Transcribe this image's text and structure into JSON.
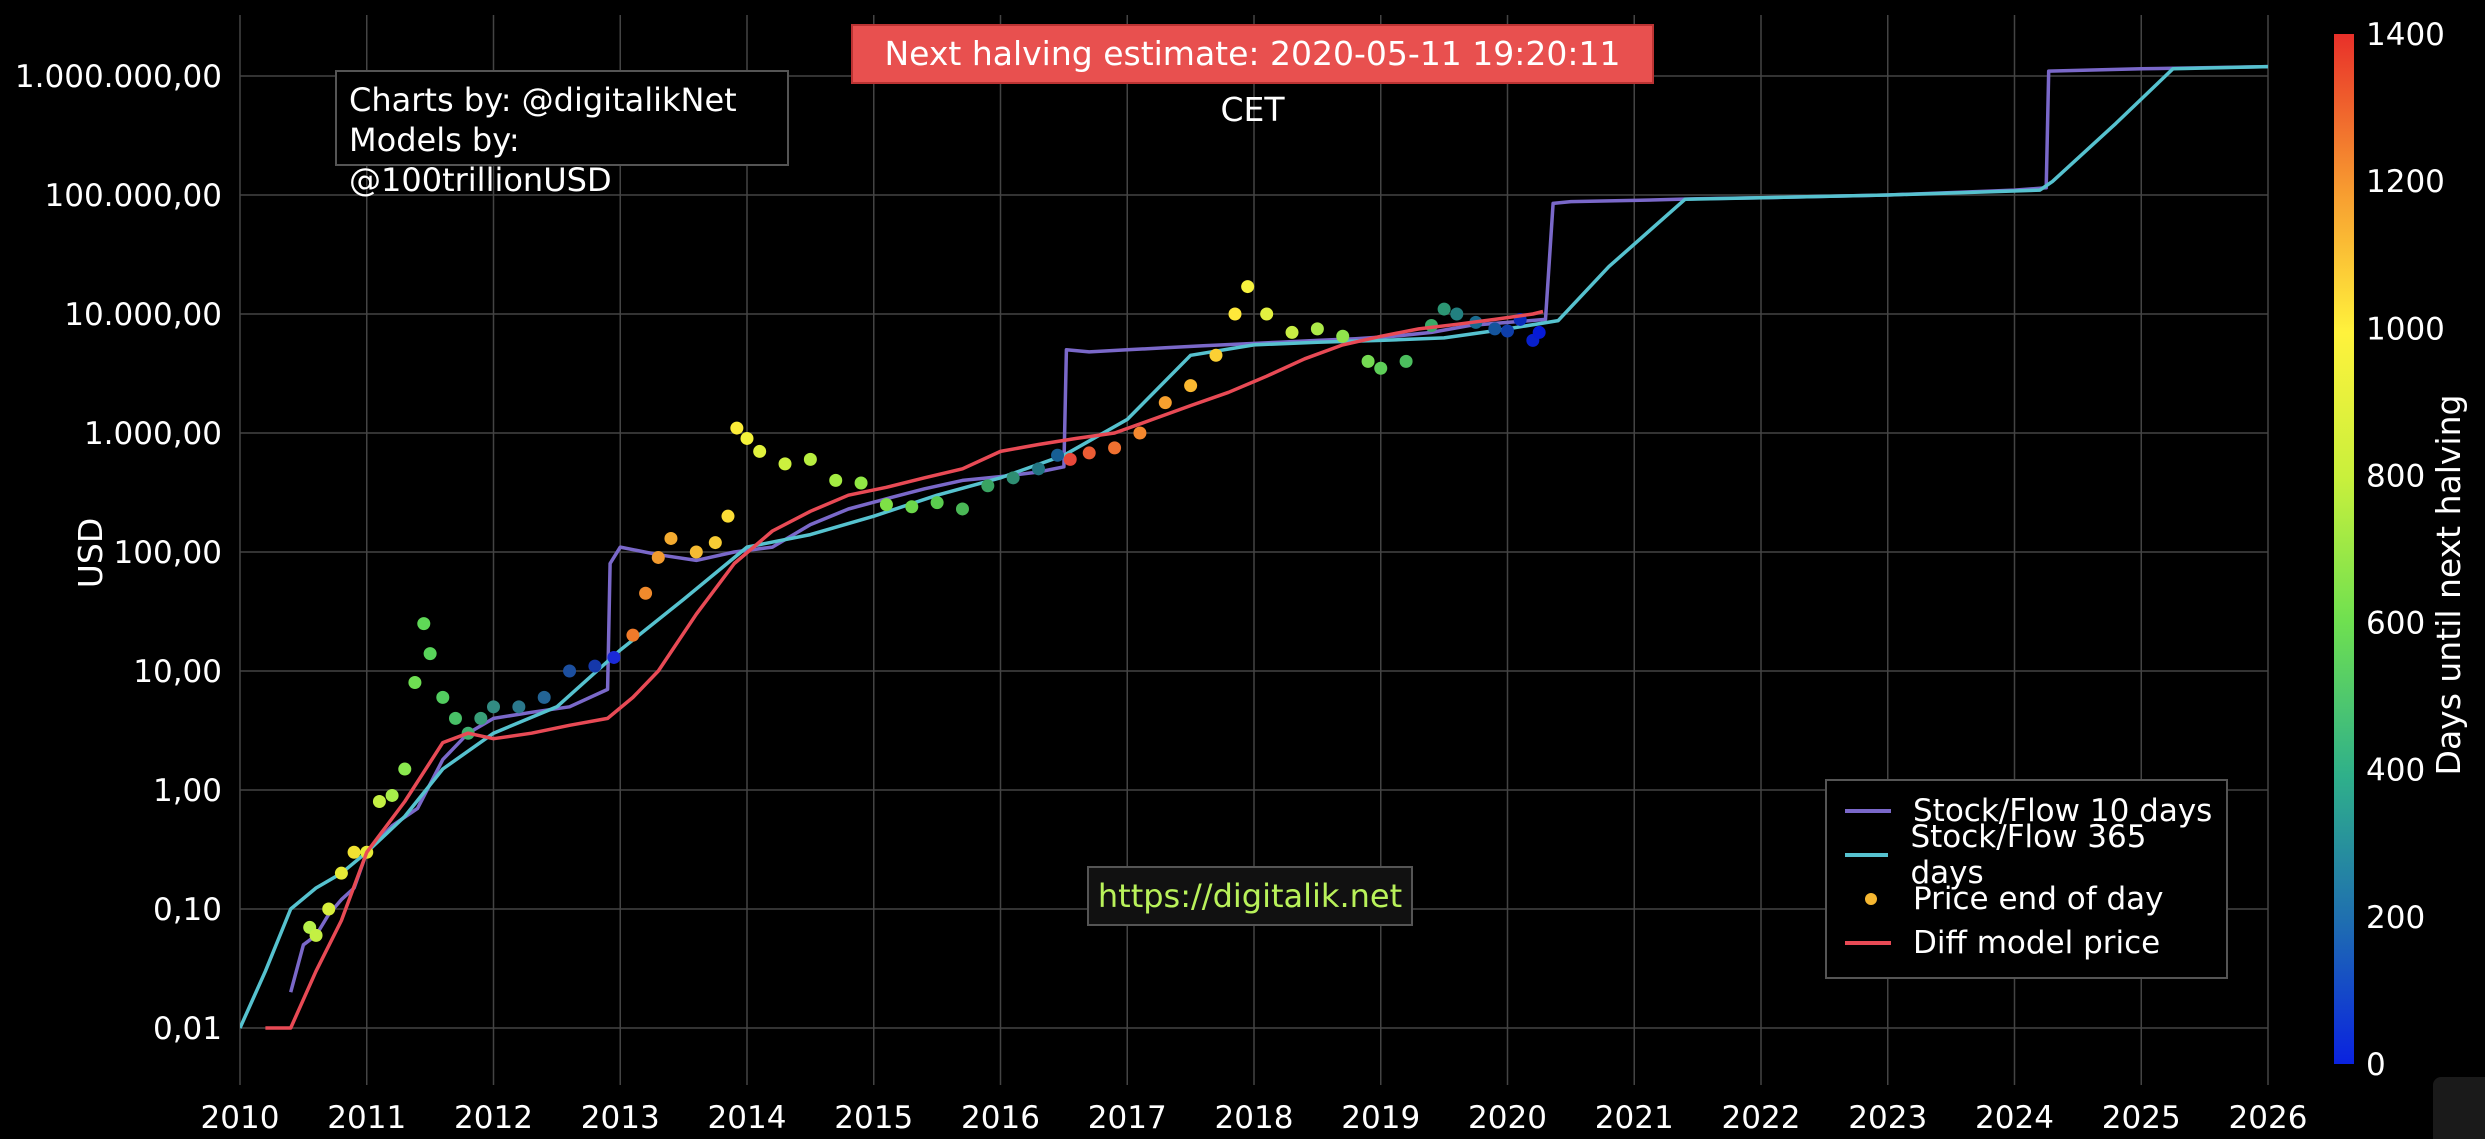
{
  "header": {
    "credit_line1": "Charts by: @digitalikNet",
    "credit_line2": "Models by: @100trillionUSD",
    "halving_text": "Next halving estimate: 2020-05-11 19:20:11 CET",
    "site_url": "https://digitalik.net"
  },
  "colors": {
    "sf10": "#7a68c9",
    "sf365": "#56c2cf",
    "price_marker": "#f5b731",
    "diff_model": "#e84a55",
    "halving_bg": "#e8504f",
    "site_text": "#b9f25a"
  },
  "chart_data": {
    "type": "line",
    "title": "",
    "xlabel": "",
    "ylabel": "USD",
    "y_scale": "log",
    "ylim": [
      0.004,
      2000000
    ],
    "xlim": [
      2010,
      2026
    ],
    "x_ticks": [
      "2010",
      "2011",
      "2012",
      "2013",
      "2014",
      "2015",
      "2016",
      "2017",
      "2018",
      "2019",
      "2020",
      "2021",
      "2022",
      "2023",
      "2024",
      "2025",
      "2026"
    ],
    "y_ticks": [
      {
        "value": 1000000,
        "label": "1.000.000,00"
      },
      {
        "value": 100000,
        "label": "100.000,00"
      },
      {
        "value": 10000,
        "label": "10.000,00"
      },
      {
        "value": 1000,
        "label": "1.000,00"
      },
      {
        "value": 100,
        "label": "100,00"
      },
      {
        "value": 10,
        "label": "10,00"
      },
      {
        "value": 1,
        "label": "1,00"
      },
      {
        "value": 0.1,
        "label": "0,10"
      },
      {
        "value": 0.01,
        "label": "0,01"
      }
    ],
    "colorbar": {
      "title": "Days until next halving",
      "range": [
        0,
        1400
      ],
      "ticks": [
        "0",
        "200",
        "400",
        "600",
        "800",
        "1000",
        "1200",
        "1400"
      ]
    },
    "legend_position": "bottom-right",
    "series": [
      {
        "name": "Stock/Flow 10 days",
        "style": "line",
        "x": [
          2010.4,
          2010.5,
          2010.6,
          2010.7,
          2010.8,
          2010.9,
          2011.0,
          2011.2,
          2011.4,
          2011.6,
          2011.8,
          2012.0,
          2012.3,
          2012.6,
          2012.9,
          2012.92,
          2013.0,
          2013.3,
          2013.6,
          2013.9,
          2014.2,
          2014.5,
          2014.8,
          2015.1,
          2015.4,
          2015.7,
          2016.0,
          2016.3,
          2016.5,
          2016.52,
          2016.7,
          2017.0,
          2017.3,
          2017.6,
          2017.9,
          2018.2,
          2018.5,
          2018.8,
          2019.1,
          2019.4,
          2019.7,
          2020.0,
          2020.3,
          2020.36,
          2020.5,
          2021.0,
          2021.5,
          2022.0,
          2023.0,
          2024.0,
          2024.25,
          2024.27,
          2025.0,
          2026.0
        ],
        "y": [
          0.02,
          0.05,
          0.06,
          0.09,
          0.12,
          0.15,
          0.3,
          0.5,
          0.7,
          1.8,
          3,
          4,
          4.5,
          5,
          7,
          80,
          110,
          95,
          85,
          100,
          110,
          170,
          230,
          280,
          340,
          400,
          430,
          470,
          520,
          5000,
          4800,
          5000,
          5200,
          5400,
          5600,
          5800,
          6000,
          6200,
          6500,
          7000,
          8000,
          8500,
          9000,
          85000,
          88000,
          90000,
          93000,
          95000,
          100000,
          110000,
          115000,
          1100000,
          1150000,
          1200000
        ]
      },
      {
        "name": "Stock/Flow 365 days",
        "style": "line",
        "x": [
          2010.0,
          2010.2,
          2010.4,
          2010.6,
          2010.8,
          2011.0,
          2011.3,
          2011.6,
          2012.0,
          2012.5,
          2013.0,
          2013.5,
          2014.0,
          2014.5,
          2015.0,
          2015.5,
          2016.0,
          2016.5,
          2017.0,
          2017.5,
          2018.0,
          2018.5,
          2019.0,
          2019.5,
          2020.0,
          2020.4,
          2020.8,
          2021.4,
          2022.0,
          2023.0,
          2024.2,
          2024.3,
          2024.8,
          2025.25,
          2026.0
        ],
        "y": [
          0.01,
          0.03,
          0.1,
          0.15,
          0.2,
          0.3,
          0.6,
          1.5,
          3,
          5,
          15,
          40,
          110,
          140,
          200,
          300,
          420,
          650,
          1300,
          4500,
          5500,
          5800,
          6000,
          6300,
          7500,
          8800,
          25000,
          92000,
          95000,
          100000,
          110000,
          130000,
          400000,
          1150000,
          1200000
        ]
      },
      {
        "name": "Price end of day",
        "style": "markers",
        "x": [
          2010.55,
          2010.6,
          2010.7,
          2010.8,
          2010.9,
          2011.0,
          2011.1,
          2011.2,
          2011.3,
          2011.38,
          2011.45,
          2011.5,
          2011.6,
          2011.7,
          2011.8,
          2011.9,
          2012.0,
          2012.2,
          2012.4,
          2012.6,
          2012.8,
          2012.95,
          2013.1,
          2013.2,
          2013.3,
          2013.4,
          2013.6,
          2013.75,
          2013.85,
          2013.92,
          2014.0,
          2014.1,
          2014.3,
          2014.5,
          2014.7,
          2014.9,
          2015.1,
          2015.3,
          2015.5,
          2015.7,
          2015.9,
          2016.1,
          2016.3,
          2016.45,
          2016.55,
          2016.7,
          2016.9,
          2017.1,
          2017.3,
          2017.5,
          2017.7,
          2017.85,
          2017.95,
          2018.1,
          2018.3,
          2018.5,
          2018.7,
          2018.9,
          2019.0,
          2019.2,
          2019.4,
          2019.5,
          2019.6,
          2019.75,
          2019.9,
          2020.0,
          2020.1,
          2020.2,
          2020.25
        ],
        "y": [
          0.07,
          0.06,
          0.1,
          0.2,
          0.3,
          0.3,
          0.8,
          0.9,
          1.5,
          8,
          25,
          14,
          6,
          4,
          3,
          4,
          5,
          5,
          6,
          10,
          11,
          13,
          20,
          45,
          90,
          130,
          100,
          120,
          200,
          1100,
          900,
          700,
          550,
          600,
          400,
          380,
          250,
          240,
          260,
          230,
          360,
          420,
          500,
          650,
          600,
          680,
          750,
          1000,
          1800,
          2500,
          4500,
          10000,
          17000,
          10000,
          7000,
          7500,
          6500,
          4000,
          3500,
          4000,
          8000,
          11000,
          10000,
          8500,
          7500,
          7200,
          9000,
          6000,
          7000
        ],
        "colors": [
          "#b7f04a",
          "#c4f043",
          "#d7ee3c",
          "#e6ea36",
          "#f0e232",
          "#e6ea36",
          "#c4f043",
          "#a8ee4a",
          "#8ae84e",
          "#6ede52",
          "#5fd857",
          "#58d45a",
          "#52cc5f",
          "#48c067",
          "#3fb06f",
          "#389e78",
          "#328b82",
          "#2b788c",
          "#236495",
          "#1c4f9f",
          "#1538aa",
          "#1a2ad8",
          "#f07a2a",
          "#f08a2c",
          "#f29a2e",
          "#f4ab30",
          "#f6bb32",
          "#f8cc34",
          "#fadc36",
          "#fcec38",
          "#f4f23a",
          "#e0f23c",
          "#ccf03e",
          "#b8ee40",
          "#a4ec42",
          "#90e844",
          "#7ee046",
          "#6cd84a",
          "#5acc4e",
          "#4ab856",
          "#3aa462",
          "#2e8e72",
          "#227682",
          "#165e94",
          "#e8483a",
          "#ec5c34",
          "#f07030",
          "#f4882e",
          "#f8a02e",
          "#fab830",
          "#fcd034",
          "#fee83a",
          "#f6f23e",
          "#e2f040",
          "#c8ee44",
          "#acea48",
          "#90e44c",
          "#74da52",
          "#5ece58",
          "#4cbe5e",
          "#3aaa68",
          "#2c9674",
          "#228080",
          "#1a6a8e",
          "#14549c",
          "#0e3eaa",
          "#0a2cba",
          "#0820cc",
          "#061ad8"
        ]
      },
      {
        "name": "Diff model price",
        "style": "line",
        "x": [
          2010.2,
          2010.4,
          2010.6,
          2010.8,
          2011.0,
          2011.3,
          2011.6,
          2011.8,
          2012.0,
          2012.3,
          2012.6,
          2012.9,
          2013.1,
          2013.3,
          2013.6,
          2013.9,
          2014.2,
          2014.5,
          2014.8,
          2015.1,
          2015.4,
          2015.7,
          2016.0,
          2016.3,
          2016.6,
          2016.9,
          2017.2,
          2017.5,
          2017.8,
          2018.1,
          2018.4,
          2018.7,
          2019.0,
          2019.3,
          2019.6,
          2019.9,
          2020.2,
          2020.28
        ],
        "y": [
          0.01,
          0.01,
          0.03,
          0.08,
          0.3,
          0.8,
          2.5,
          3,
          2.7,
          3,
          3.5,
          4,
          6,
          10,
          30,
          80,
          150,
          220,
          300,
          350,
          420,
          500,
          700,
          800,
          900,
          1000,
          1300,
          1700,
          2200,
          3000,
          4200,
          5500,
          6500,
          7500,
          8200,
          9000,
          10000,
          10500
        ]
      }
    ]
  }
}
